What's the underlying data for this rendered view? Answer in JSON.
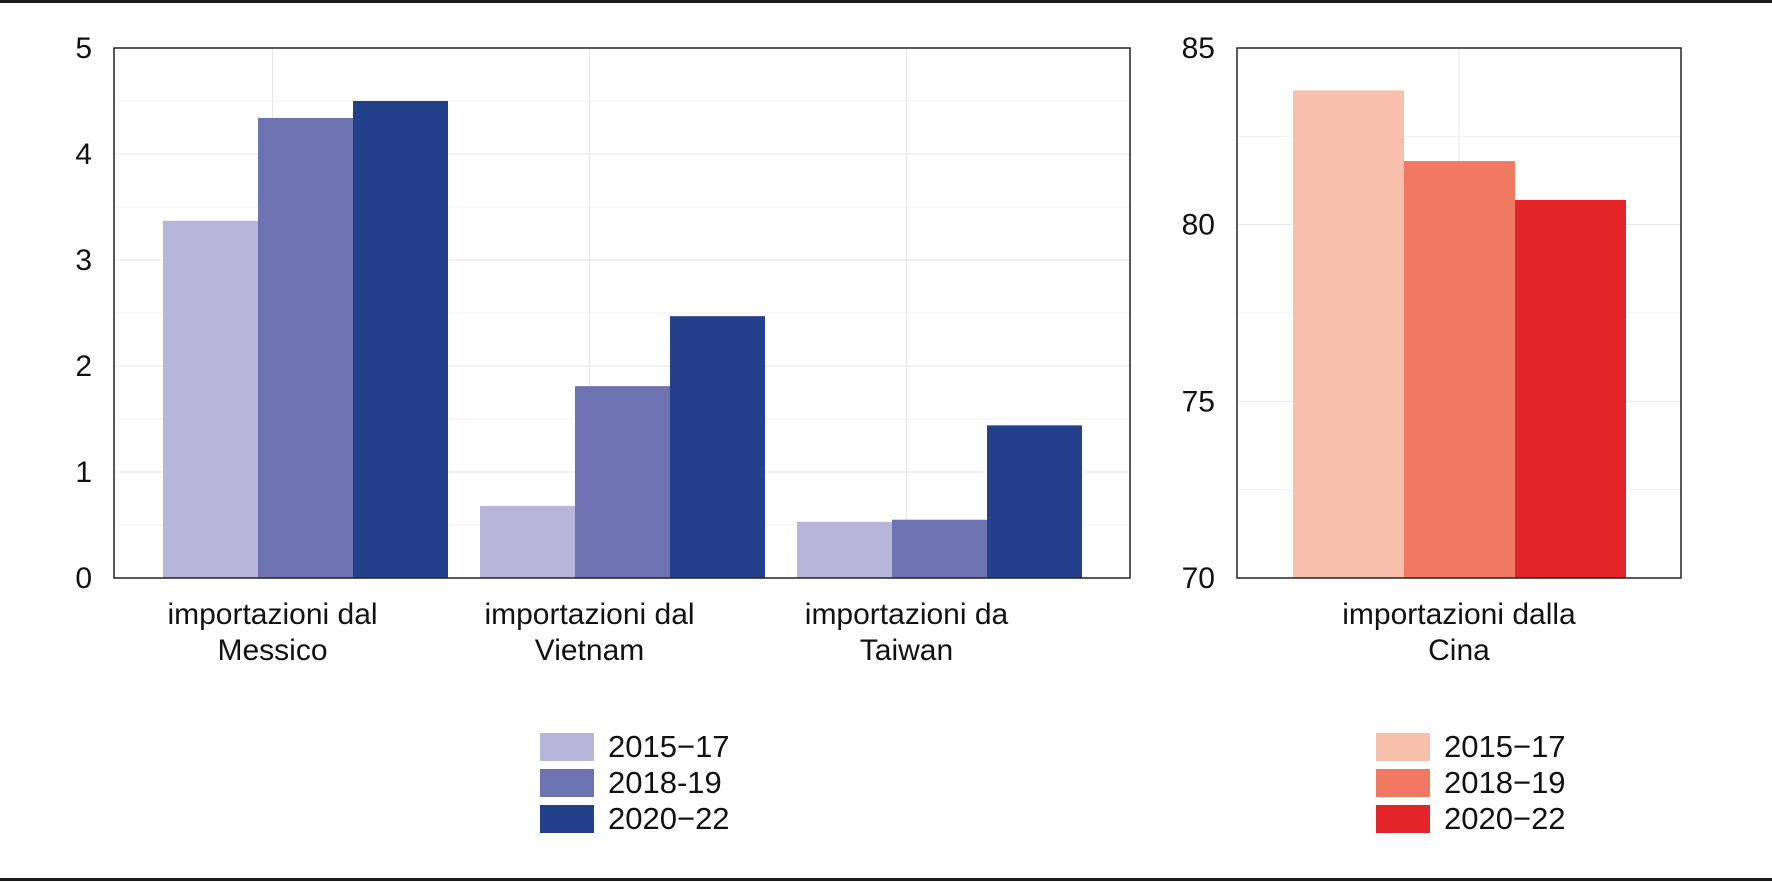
{
  "chart_data": [
    {
      "type": "bar",
      "categories": [
        [
          "importazioni dal",
          "Messico"
        ],
        [
          "importazioni dal",
          "Vietnam"
        ],
        [
          "importazioni da",
          "Taiwan"
        ]
      ],
      "series": [
        {
          "name": "2015−17",
          "color": "#b5b6d9",
          "values": [
            3.37,
            0.68,
            0.53
          ]
        },
        {
          "name": "2018‑19",
          "color": "#6d73b0",
          "values": [
            4.34,
            1.81,
            0.55
          ]
        },
        {
          "name": "2020−22",
          "color": "#25408b",
          "values": [
            4.5,
            2.47,
            1.44
          ]
        }
      ],
      "ylim": [
        0,
        5
      ],
      "yticks": [
        0,
        1,
        2,
        3,
        4,
        5
      ],
      "grid": true,
      "legend_placement": "bottom"
    },
    {
      "type": "bar",
      "categories": [
        [
          "importazioni dalla",
          "Cina"
        ]
      ],
      "series": [
        {
          "name": "2015−17",
          "color": "#f8bfaa",
          "values": [
            83.8
          ]
        },
        {
          "name": "2018−19",
          "color": "#ef7a61",
          "values": [
            81.8
          ]
        },
        {
          "name": "2020−22",
          "color": "#e32428",
          "values": [
            80.7
          ]
        }
      ],
      "ylim": [
        70,
        85
      ],
      "yticks": [
        70,
        75,
        80,
        85
      ],
      "grid": true,
      "legend_placement": "bottom"
    }
  ]
}
